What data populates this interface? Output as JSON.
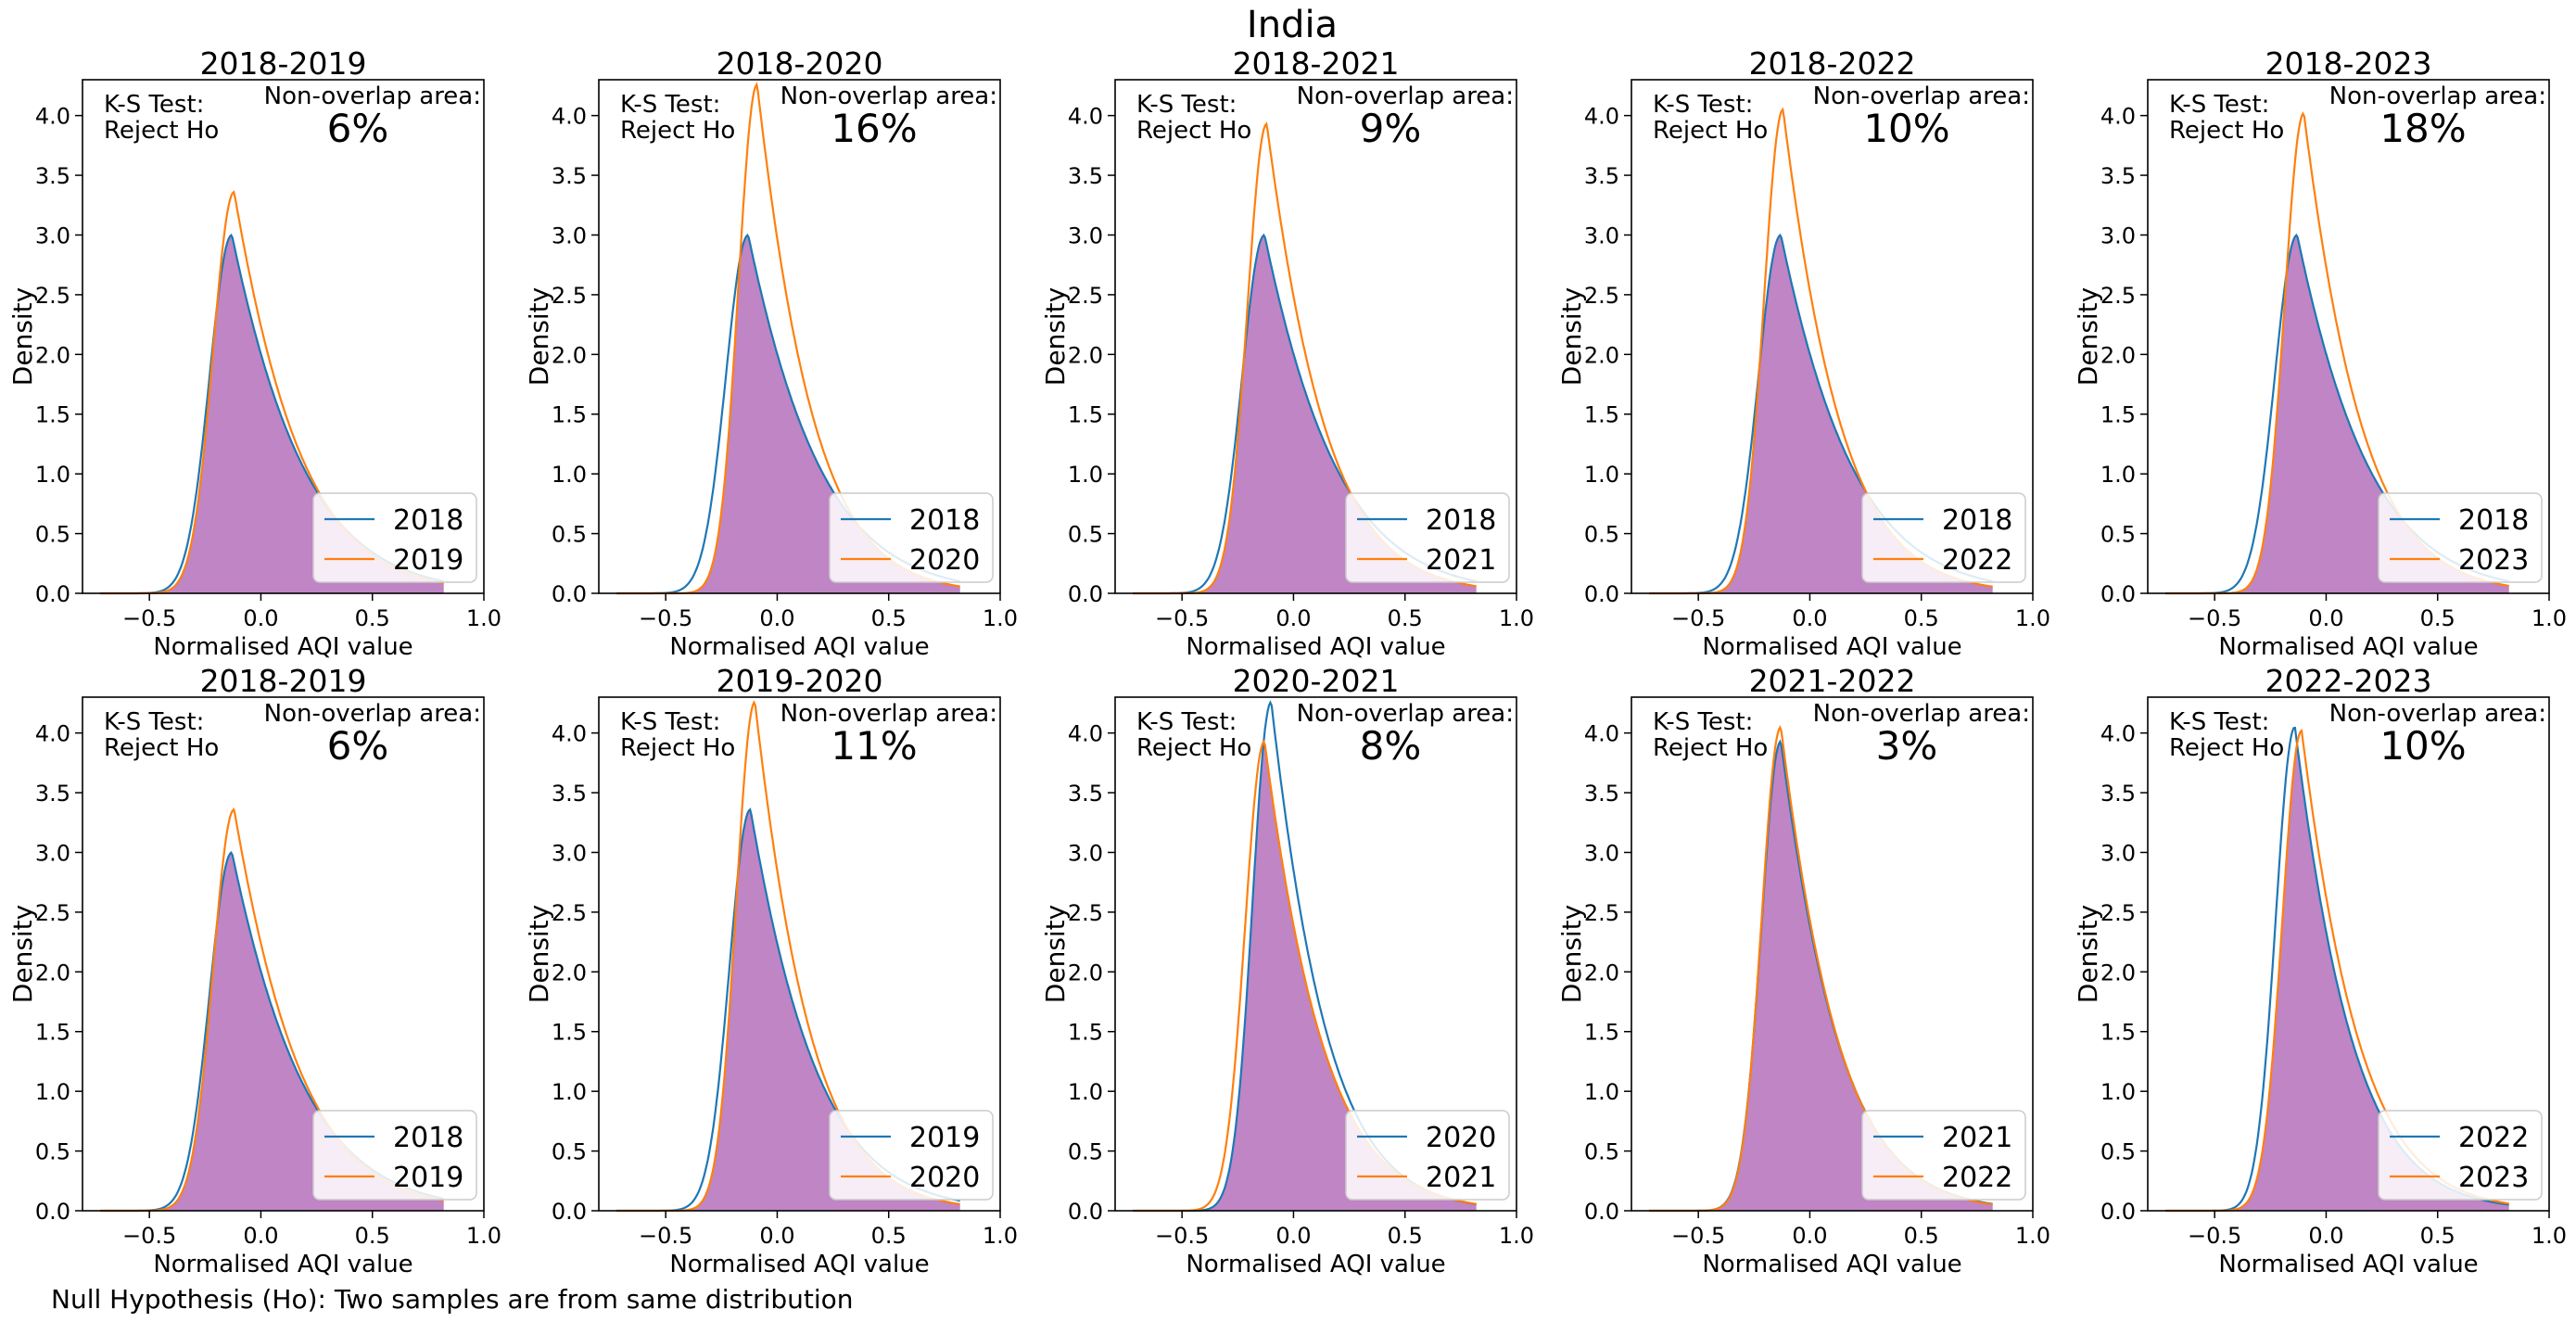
{
  "figure": {
    "title": "India",
    "footnote": "Null Hypothesis (Ho): Two samples are from same distribution"
  },
  "colors": {
    "series_a": "#1f77b4",
    "series_b": "#ff7f0e",
    "overlap_fill": "#bf85c4",
    "axes": "#000000"
  },
  "chart_data": [
    {
      "type": "area",
      "title": "2018-2019",
      "xlabel": "Normalised AQI value",
      "ylabel": "Density",
      "xlim": [
        -0.8,
        1.0
      ],
      "ylim": [
        0,
        4.3
      ],
      "xticks": [
        "−0.5",
        "0.0",
        "0.5",
        "1.0"
      ],
      "yticks": [
        "0.0",
        "0.5",
        "1.0",
        "1.5",
        "2.0",
        "2.5",
        "3.0",
        "3.5",
        "4.0"
      ],
      "ks_test": "K-S Test:",
      "ks_result": "Reject Ho",
      "overlap_label": "Non-overlap area:",
      "non_overlap": "6%",
      "legend_position": "lower right",
      "grid": false,
      "series": [
        {
          "name": "2018",
          "mode": -0.13,
          "peak": 3.0
        },
        {
          "name": "2019",
          "mode": -0.12,
          "peak": 3.36
        }
      ]
    },
    {
      "type": "area",
      "title": "2018-2020",
      "xlabel": "Normalised AQI value",
      "ylabel": "Density",
      "xlim": [
        -0.8,
        1.0
      ],
      "ylim": [
        0,
        4.3
      ],
      "xticks": [
        "−0.5",
        "0.0",
        "0.5",
        "1.0"
      ],
      "yticks": [
        "0.0",
        "0.5",
        "1.0",
        "1.5",
        "2.0",
        "2.5",
        "3.0",
        "3.5",
        "4.0"
      ],
      "ks_test": "K-S Test:",
      "ks_result": "Reject Ho",
      "overlap_label": "Non-overlap area:",
      "non_overlap": "16%",
      "legend_position": "lower right",
      "grid": false,
      "series": [
        {
          "name": "2018",
          "mode": -0.13,
          "peak": 3.0
        },
        {
          "name": "2020",
          "mode": -0.09,
          "peak": 4.26
        }
      ]
    },
    {
      "type": "area",
      "title": "2018-2021",
      "xlabel": "Normalised AQI value",
      "ylabel": "Density",
      "xlim": [
        -0.8,
        1.0
      ],
      "ylim": [
        0,
        4.3
      ],
      "xticks": [
        "−0.5",
        "0.0",
        "0.5",
        "1.0"
      ],
      "yticks": [
        "0.0",
        "0.5",
        "1.0",
        "1.5",
        "2.0",
        "2.5",
        "3.0",
        "3.5",
        "4.0"
      ],
      "ks_test": "K-S Test:",
      "ks_result": "Reject Ho",
      "overlap_label": "Non-overlap area:",
      "non_overlap": "9%",
      "legend_position": "lower right",
      "grid": false,
      "series": [
        {
          "name": "2018",
          "mode": -0.13,
          "peak": 3.0
        },
        {
          "name": "2021",
          "mode": -0.12,
          "peak": 3.93
        }
      ]
    },
    {
      "type": "area",
      "title": "2018-2022",
      "xlabel": "Normalised AQI value",
      "ylabel": "Density",
      "xlim": [
        -0.8,
        1.0
      ],
      "ylim": [
        0,
        4.3
      ],
      "xticks": [
        "−0.5",
        "0.0",
        "0.5",
        "1.0"
      ],
      "yticks": [
        "0.0",
        "0.5",
        "1.0",
        "1.5",
        "2.0",
        "2.5",
        "3.0",
        "3.5",
        "4.0"
      ],
      "ks_test": "K-S Test:",
      "ks_result": "Reject Ho",
      "overlap_label": "Non-overlap area:",
      "non_overlap": "10%",
      "legend_position": "lower right",
      "grid": false,
      "series": [
        {
          "name": "2018",
          "mode": -0.13,
          "peak": 3.0
        },
        {
          "name": "2022",
          "mode": -0.12,
          "peak": 4.05
        }
      ]
    },
    {
      "type": "area",
      "title": "2018-2023",
      "xlabel": "Normalised AQI value",
      "ylabel": "Density",
      "xlim": [
        -0.8,
        1.0
      ],
      "ylim": [
        0,
        4.3
      ],
      "xticks": [
        "−0.5",
        "0.0",
        "0.5",
        "1.0"
      ],
      "yticks": [
        "0.0",
        "0.5",
        "1.0",
        "1.5",
        "2.0",
        "2.5",
        "3.0",
        "3.5",
        "4.0"
      ],
      "ks_test": "K-S Test:",
      "ks_result": "Reject Ho",
      "overlap_label": "Non-overlap area:",
      "non_overlap": "18%",
      "legend_position": "lower right",
      "grid": false,
      "series": [
        {
          "name": "2018",
          "mode": -0.13,
          "peak": 3.0
        },
        {
          "name": "2023",
          "mode": -0.1,
          "peak": 4.02
        }
      ]
    },
    {
      "type": "area",
      "title": "2018-2019",
      "xlabel": "Normalised AQI value",
      "ylabel": "Density",
      "xlim": [
        -0.8,
        1.0
      ],
      "ylim": [
        0,
        4.3
      ],
      "xticks": [
        "−0.5",
        "0.0",
        "0.5",
        "1.0"
      ],
      "yticks": [
        "0.0",
        "0.5",
        "1.0",
        "1.5",
        "2.0",
        "2.5",
        "3.0",
        "3.5",
        "4.0"
      ],
      "ks_test": "K-S Test:",
      "ks_result": "Reject Ho",
      "overlap_label": "Non-overlap area:",
      "non_overlap": "6%",
      "legend_position": "lower right",
      "grid": false,
      "series": [
        {
          "name": "2018",
          "mode": -0.13,
          "peak": 3.0
        },
        {
          "name": "2019",
          "mode": -0.12,
          "peak": 3.36
        }
      ]
    },
    {
      "type": "area",
      "title": "2019-2020",
      "xlabel": "Normalised AQI value",
      "ylabel": "Density",
      "xlim": [
        -0.8,
        1.0
      ],
      "ylim": [
        0,
        4.3
      ],
      "xticks": [
        "−0.5",
        "0.0",
        "0.5",
        "1.0"
      ],
      "yticks": [
        "0.0",
        "0.5",
        "1.0",
        "1.5",
        "2.0",
        "2.5",
        "3.0",
        "3.5",
        "4.0"
      ],
      "ks_test": "K-S Test:",
      "ks_result": "Reject Ho",
      "overlap_label": "Non-overlap area:",
      "non_overlap": "11%",
      "legend_position": "lower right",
      "grid": false,
      "series": [
        {
          "name": "2019",
          "mode": -0.12,
          "peak": 3.36
        },
        {
          "name": "2020",
          "mode": -0.1,
          "peak": 4.26
        }
      ]
    },
    {
      "type": "area",
      "title": "2020-2021",
      "xlabel": "Normalised AQI value",
      "ylabel": "Density",
      "xlim": [
        -0.8,
        1.0
      ],
      "ylim": [
        0,
        4.3
      ],
      "xticks": [
        "−0.5",
        "0.0",
        "0.5",
        "1.0"
      ],
      "yticks": [
        "0.0",
        "0.5",
        "1.0",
        "1.5",
        "2.0",
        "2.5",
        "3.0",
        "3.5",
        "4.0"
      ],
      "ks_test": "K-S Test:",
      "ks_result": "Reject Ho",
      "overlap_label": "Non-overlap area:",
      "non_overlap": "8%",
      "legend_position": "lower right",
      "grid": false,
      "series": [
        {
          "name": "2020",
          "mode": -0.1,
          "peak": 4.26
        },
        {
          "name": "2021",
          "mode": -0.13,
          "peak": 3.93
        }
      ]
    },
    {
      "type": "area",
      "title": "2021-2022",
      "xlabel": "Normalised AQI value",
      "ylabel": "Density",
      "xlim": [
        -0.8,
        1.0
      ],
      "ylim": [
        0,
        4.3
      ],
      "xticks": [
        "−0.5",
        "0.0",
        "0.5",
        "1.0"
      ],
      "yticks": [
        "0.0",
        "0.5",
        "1.0",
        "1.5",
        "2.0",
        "2.5",
        "3.0",
        "3.5",
        "4.0"
      ],
      "ks_test": "K-S Test:",
      "ks_result": "Reject Ho",
      "overlap_label": "Non-overlap area:",
      "non_overlap": "3%",
      "legend_position": "lower right",
      "grid": false,
      "series": [
        {
          "name": "2021",
          "mode": -0.13,
          "peak": 3.93
        },
        {
          "name": "2022",
          "mode": -0.13,
          "peak": 4.05
        }
      ]
    },
    {
      "type": "area",
      "title": "2022-2023",
      "xlabel": "Normalised AQI value",
      "ylabel": "Density",
      "xlim": [
        -0.8,
        1.0
      ],
      "ylim": [
        0,
        4.3
      ],
      "xticks": [
        "−0.5",
        "0.0",
        "0.5",
        "1.0"
      ],
      "yticks": [
        "0.0",
        "0.5",
        "1.0",
        "1.5",
        "2.0",
        "2.5",
        "3.0",
        "3.5",
        "4.0"
      ],
      "ks_test": "K-S Test:",
      "ks_result": "Reject Ho",
      "overlap_label": "Non-overlap area:",
      "non_overlap": "10%",
      "legend_position": "lower right",
      "grid": false,
      "series": [
        {
          "name": "2022",
          "mode": -0.14,
          "peak": 4.05
        },
        {
          "name": "2023",
          "mode": -0.11,
          "peak": 4.02
        }
      ]
    }
  ]
}
